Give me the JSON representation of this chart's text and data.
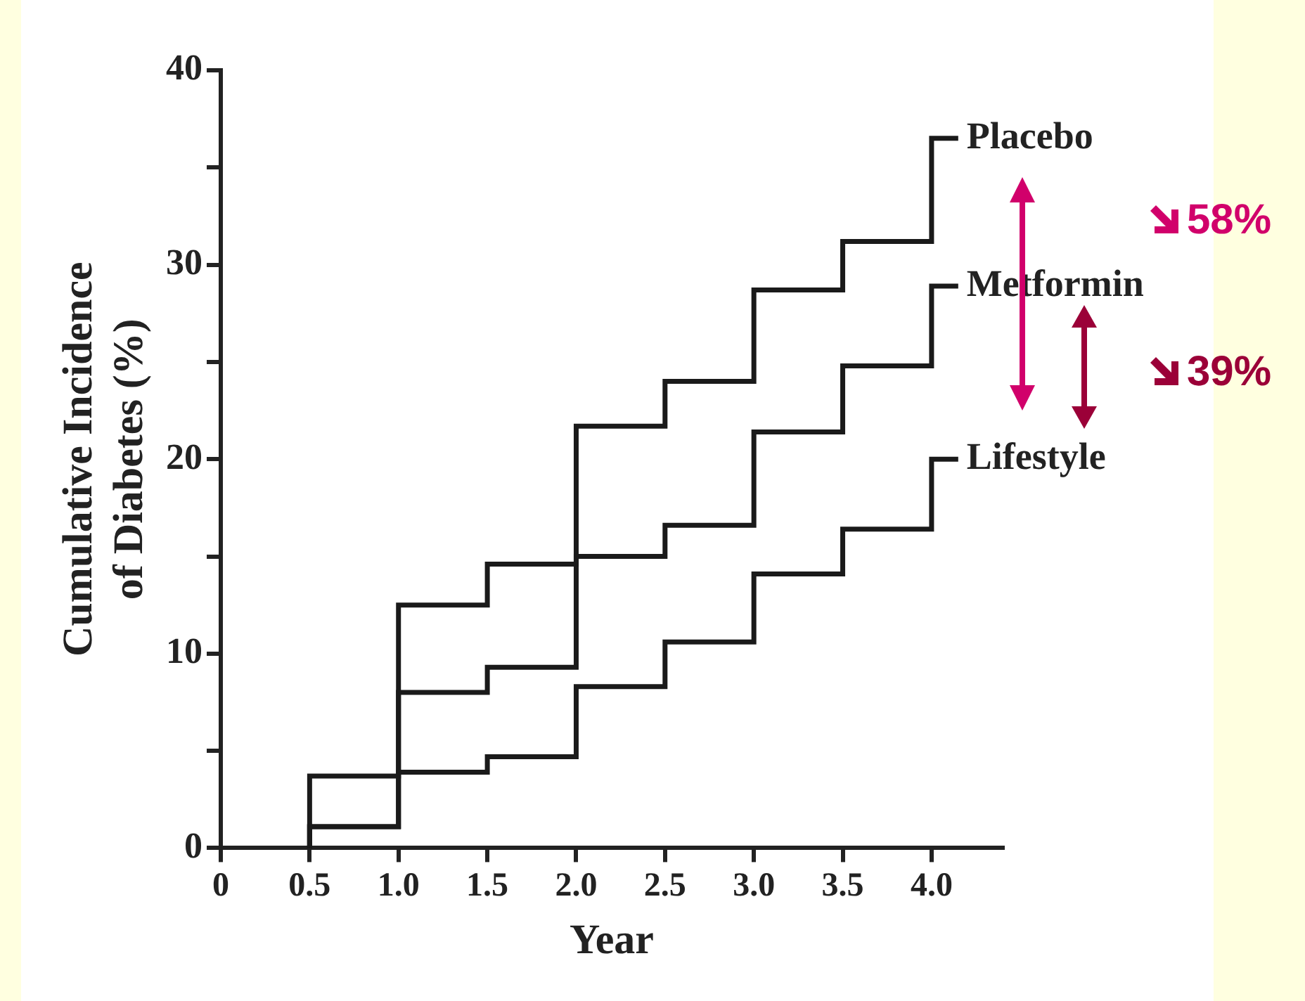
{
  "chart_data": {
    "type": "step",
    "xlabel": "Year",
    "ylabel": "Cumulative Incidence\nof Diabetes (%)",
    "xlim": [
      0,
      4.4
    ],
    "xticks": [
      0,
      {
        "value": 0.5,
        "label": "0.5"
      },
      {
        "value": 1,
        "label": "1.0"
      },
      {
        "value": 1.5,
        "label": "1.5"
      },
      {
        "value": 2,
        "label": "2.0"
      },
      {
        "value": 2.5,
        "label": "2.5"
      },
      {
        "value": 3,
        "label": "3.0"
      },
      {
        "value": 3.5,
        "label": "3.5"
      },
      {
        "value": 4,
        "label": "4.0"
      }
    ],
    "ylim": [
      0,
      40
    ],
    "yticks": [
      0,
      {
        "value": 5,
        "label": null
      },
      10,
      {
        "value": 15,
        "label": null
      },
      20,
      {
        "value": 25,
        "label": null
      },
      30,
      {
        "value": 35,
        "label": null
      },
      40
    ],
    "x": [
      0.5,
      0.5,
      1,
      1.5,
      2,
      2.5,
      3,
      3.5,
      4,
      4.15
    ],
    "series": [
      {
        "name": "Placebo",
        "color": "#1a1a1a",
        "values": [
          0,
          3.7,
          12.5,
          14.6,
          21.7,
          24.0,
          28.7,
          31.2,
          36.5,
          36.5
        ]
      },
      {
        "name": "Metformin",
        "color": "#1a1a1a",
        "values": [
          0,
          1.1,
          8.0,
          9.3,
          15.0,
          16.6,
          21.4,
          24.8,
          28.9,
          28.9
        ]
      },
      {
        "name": "Lifestyle",
        "color": "#1a1a1a",
        "values": [
          0,
          1.1,
          3.9,
          4.7,
          8.3,
          10.6,
          14.1,
          16.4,
          20.0,
          20.0
        ]
      }
    ],
    "annotations": [
      "58%",
      "39%"
    ],
    "grid": false,
    "legend": false,
    "marker": "none"
  }
}
